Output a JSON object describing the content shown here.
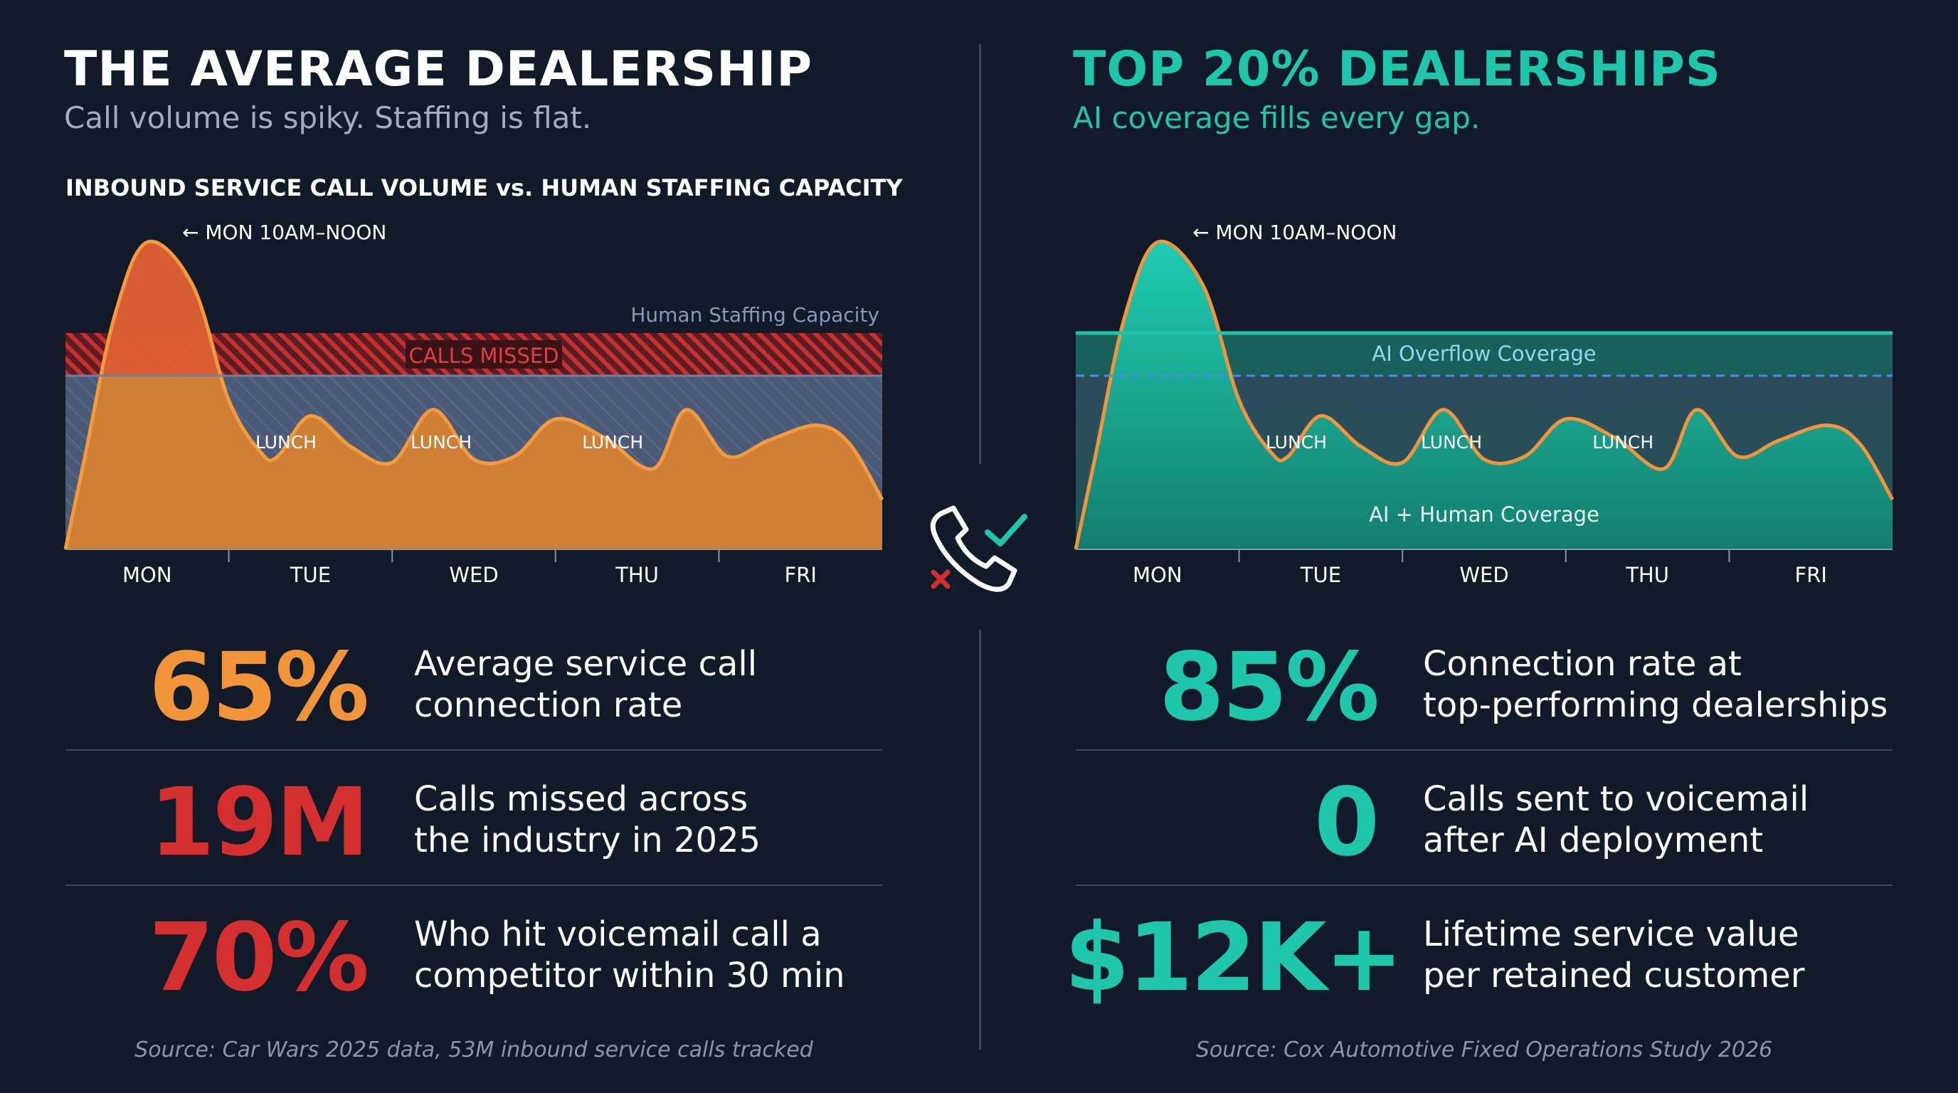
{
  "left": {
    "title": "THE AVERAGE DEALERSHIP",
    "subtitle": "Call volume is spiky. Staffing is flat.",
    "chart_heading": "INBOUND SERVICE CALL VOLUME vs. HUMAN STAFFING CAPACITY",
    "peak_label": "MON 10AM–NOON",
    "capacity_label": "Human Staffing Capacity",
    "missed_label": "CALLS MISSED",
    "lunch_label": "LUNCH",
    "days": [
      "MON",
      "TUE",
      "WED",
      "THU",
      "FRI"
    ],
    "stats": [
      {
        "value": "65%",
        "text_l1": "Average service call",
        "text_l2": "connection rate",
        "color": "#f2953a"
      },
      {
        "value": "19M",
        "text_l1": "Calls missed across",
        "text_l2": "the industry in 2025",
        "color": "#d42f2f"
      },
      {
        "value": "70%",
        "text_l1": "Who hit voicemail call a",
        "text_l2": "competitor within 30 min",
        "color": "#d42f2f"
      }
    ],
    "source": "Source: Car Wars 2025 data, 53M inbound service calls tracked"
  },
  "right": {
    "title": "TOP 20% DEALERSHIPS",
    "subtitle": "AI coverage fills every gap.",
    "peak_label": "MON 10AM–NOON",
    "overflow_label": "AI Overflow Coverage",
    "coverage_label": "AI + Human Coverage",
    "lunch_label": "LUNCH",
    "days": [
      "MON",
      "TUE",
      "WED",
      "THU",
      "FRI"
    ],
    "stats": [
      {
        "value": "85%",
        "text_l1": "Connection rate at",
        "text_l2": "top-performing dealerships",
        "color": "#1ec7ab"
      },
      {
        "value": "0",
        "text_l1": "Calls sent to voicemail",
        "text_l2": "after AI deployment",
        "color": "#1ec7ab"
      },
      {
        "value": "$12K+",
        "text_l1": "Lifetime service value",
        "text_l2": "per retained customer",
        "color": "#1ec7ab"
      }
    ],
    "source": "Source: Cox Automotive Fixed Operations Study 2026"
  },
  "colors": {
    "orange": "#f2953a",
    "red": "#d42f2f",
    "teal": "#1ec7ab",
    "background": "#101a28",
    "capacity_fill": "#4a5a75",
    "dashed_line": "#4a8ce0"
  },
  "icons": {
    "center": "phone-check-icon"
  },
  "chart_data": [
    {
      "type": "area",
      "title": "INBOUND SERVICE CALL VOLUME vs. HUMAN STAFFING CAPACITY",
      "categories": [
        "MON",
        "TUE",
        "WED",
        "THU",
        "FRI"
      ],
      "x": [
        0,
        0.12,
        0.3,
        0.5,
        0.78,
        1.0,
        1.2,
        1.3,
        1.5,
        1.75,
        2.0,
        2.25,
        2.5,
        2.75,
        3.0,
        3.3,
        3.6,
        3.8,
        4.05,
        4.3,
        4.6,
        4.8,
        5.0
      ],
      "series": [
        {
          "name": "",
          "values": [
            0,
            30,
            75,
            99,
            85,
            48,
            31,
            30,
            43,
            33,
            28,
            45,
            29,
            30,
            42,
            36,
            26,
            45,
            30,
            35,
            40,
            34,
            16
          ]
        }
      ],
      "capacity": 55,
      "missed_band": [
        55,
        68
      ],
      "annotations": [
        "MON 10AM–NOON",
        "Human Staffing Capacity",
        "CALLS MISSED",
        "LUNCH",
        "LUNCH",
        "LUNCH"
      ],
      "grid": false
    },
    {
      "type": "area",
      "categories": [
        "MON",
        "TUE",
        "WED",
        "THU",
        "FRI"
      ],
      "x": [
        0,
        0.12,
        0.3,
        0.5,
        0.78,
        1.0,
        1.2,
        1.3,
        1.5,
        1.75,
        2.0,
        2.25,
        2.5,
        2.75,
        3.0,
        3.3,
        3.6,
        3.8,
        4.05,
        4.3,
        4.6,
        4.8,
        5.0
      ],
      "series": [
        {
          "name": "",
          "values": [
            0,
            30,
            75,
            99,
            85,
            48,
            31,
            30,
            43,
            33,
            28,
            45,
            29,
            30,
            42,
            36,
            26,
            45,
            30,
            35,
            40,
            34,
            16
          ]
        }
      ],
      "capacity": 55,
      "coverage_top": 68,
      "annotations": [
        "MON 10AM–NOON",
        "AI Overflow Coverage",
        "AI + Human Coverage",
        "LUNCH",
        "LUNCH",
        "LUNCH"
      ],
      "grid": false
    }
  ]
}
